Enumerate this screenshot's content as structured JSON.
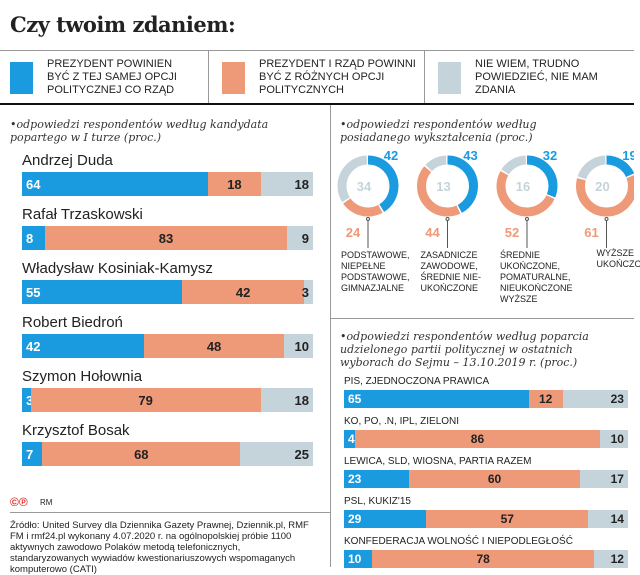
{
  "title": "Czy twoim zdaniem:",
  "legend": [
    {
      "label": "PREZYDENT POWINIEN BYĆ Z TEJ SAMEJ OPCJI POLITYCZNEJ CO RZĄD",
      "color": "#1a9be0"
    },
    {
      "label": "PREZYDENT I RZĄD POWINNI BYĆ Z RÓŻNYCH OPCJI POLITYCZNYCH",
      "color": "#ee9a78"
    },
    {
      "label": "NIE WIEM, TRUDNO POWIEDZIEĆ, NIE MAM ZDANIA",
      "color": "#c5d3da"
    }
  ],
  "chart_data": [
    {
      "type": "bar",
      "orientation": "horizontal",
      "stacked": true,
      "title": "odpowiedzi respondentów według kandydata popartego w I turze (proc.)",
      "categories": [
        "Andrzej Duda",
        "Rafał Trzaskowski",
        "Władysław Kosiniak-Kamysz",
        "Robert Biedroń",
        "Szymon Hołownia",
        "Krzysztof Bosak"
      ],
      "series": [
        {
          "values": [
            64,
            8,
            55,
            42,
            3,
            7
          ]
        },
        {
          "values": [
            18,
            83,
            42,
            48,
            79,
            68
          ]
        },
        {
          "values": [
            18,
            9,
            3,
            10,
            18,
            25
          ]
        }
      ]
    },
    {
      "type": "pie",
      "donut": true,
      "title": "odpowiedzi respondentów według posiadanego wykształcenia (proc.)",
      "categories": [
        "PODSTAWOWE, NIEPEŁNE PODSTAWOWE, GIMNAZJALNE",
        "ZASADNICZE ZAWODOWE, ŚREDNIE NIE-UKOŃCZONE",
        "ŚREDNIE UKOŃCZONE, POMATURALNE, NIEUKOŃCZONE WYŻSZE",
        "WYŻSZE UKOŃCZONE"
      ],
      "series": [
        {
          "values": [
            42,
            43,
            32,
            19
          ]
        },
        {
          "values": [
            24,
            44,
            52,
            61
          ]
        },
        {
          "values": [
            34,
            13,
            16,
            20
          ]
        }
      ]
    },
    {
      "type": "bar",
      "orientation": "horizontal",
      "stacked": true,
      "title": "odpowiedzi respondentów według poparcia udzielonego partii politycznej w ostatnich wyborach do Sejmu – 13.10.2019 r. (proc.)",
      "categories": [
        "PiS, ZJEDNOCZONA PRAWICA",
        "KO, PO, .N, IPL, ZIELONI",
        "LEWICA, SLD, WIOSNA, PARTIA RAZEM",
        "PSL, KUKIZ'15",
        "KONFEDERACJA WOLNOŚĆ I NIEPODLEGŁOŚĆ"
      ],
      "series": [
        {
          "values": [
            65,
            4,
            23,
            29,
            10
          ]
        },
        {
          "values": [
            12,
            86,
            60,
            57,
            78
          ]
        },
        {
          "values": [
            23,
            10,
            17,
            14,
            12
          ]
        }
      ]
    }
  ],
  "credit": "RM",
  "source": "Źródło: United Survey dla Dziennika Gazety Prawnej, Dziennik.pl, RMF FM i rmf24.pl wykonany 4.07.2020 r. na ogólnopolskiej próbie 1100 aktywnych zawodowo Polaków metodą telefonicznych, standaryzowanych wywiadów kwestionariuszowych wspomaganych komputerowo (CATI)"
}
